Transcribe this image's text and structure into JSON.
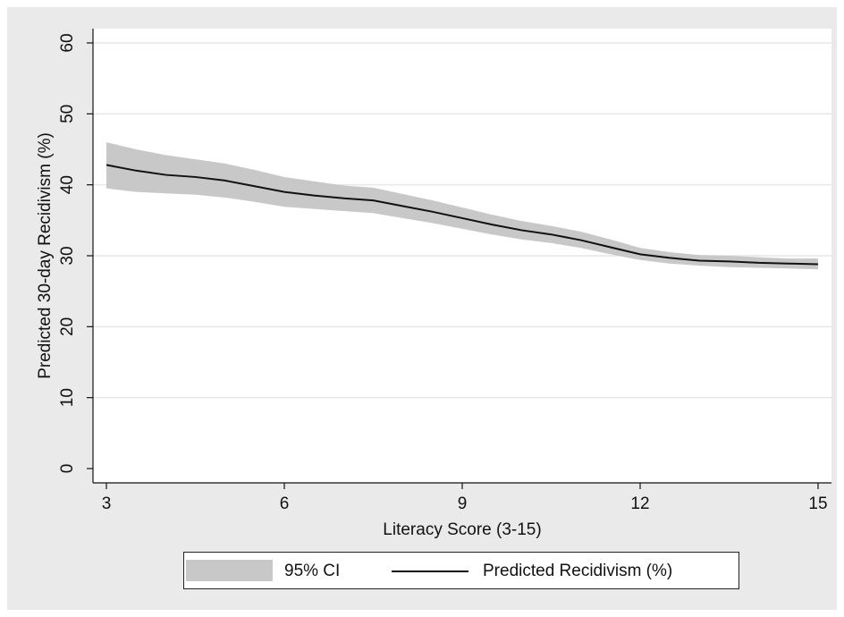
{
  "chart_data": {
    "type": "line",
    "title": "",
    "xlabel": "Literacy Score (3-15)",
    "ylabel": "Predicted 30-day Recidivism (%)",
    "xlim": [
      3,
      15
    ],
    "ylim": [
      0,
      60
    ],
    "xticks": [
      3,
      6,
      9,
      12,
      15
    ],
    "yticks": [
      0,
      10,
      20,
      30,
      40,
      50,
      60
    ],
    "grid": "horizontal",
    "legend_position": "bottom",
    "colors": {
      "ci_band": "#c8c8c8",
      "line": "#111111",
      "plot_background": "#ffffff",
      "outer_background": "#eaeaea"
    },
    "series": [
      {
        "name": "Predicted Recidivism (%)",
        "x": [
          3,
          3.5,
          4,
          4.5,
          5,
          5.5,
          6,
          6.5,
          7,
          7.5,
          8,
          8.5,
          9,
          9.5,
          10,
          10.5,
          11,
          11.5,
          12,
          12.5,
          13,
          13.5,
          14,
          14.5,
          15
        ],
        "y": [
          42.8,
          42.0,
          41.4,
          41.1,
          40.6,
          39.8,
          39.0,
          38.5,
          38.1,
          37.8,
          37.0,
          36.2,
          35.3,
          34.4,
          33.6,
          33.0,
          32.2,
          31.2,
          30.2,
          29.7,
          29.3,
          29.2,
          29.0,
          28.9,
          28.8
        ]
      },
      {
        "name": "95% CI",
        "x": [
          3,
          3.5,
          4,
          4.5,
          5,
          5.5,
          6,
          6.5,
          7,
          7.5,
          8,
          8.5,
          9,
          9.5,
          10,
          10.5,
          11,
          11.5,
          12,
          12.5,
          13,
          13.5,
          14,
          14.5,
          15
        ],
        "lower": [
          39.5,
          39.0,
          38.8,
          38.6,
          38.2,
          37.6,
          36.9,
          36.6,
          36.3,
          36.0,
          35.3,
          34.6,
          33.8,
          33.0,
          32.3,
          31.8,
          31.1,
          30.2,
          29.4,
          28.9,
          28.6,
          28.4,
          28.3,
          28.2,
          28.1
        ],
        "upper": [
          46.0,
          45.0,
          44.2,
          43.6,
          43.0,
          42.1,
          41.1,
          40.5,
          39.9,
          39.6,
          38.7,
          37.8,
          36.8,
          35.8,
          34.9,
          34.2,
          33.4,
          32.3,
          31.1,
          30.5,
          30.1,
          30.0,
          29.8,
          29.6,
          29.6
        ]
      }
    ]
  },
  "legend": {
    "ci_label": "95% CI",
    "line_label": "Predicted Recidivism (%)"
  }
}
